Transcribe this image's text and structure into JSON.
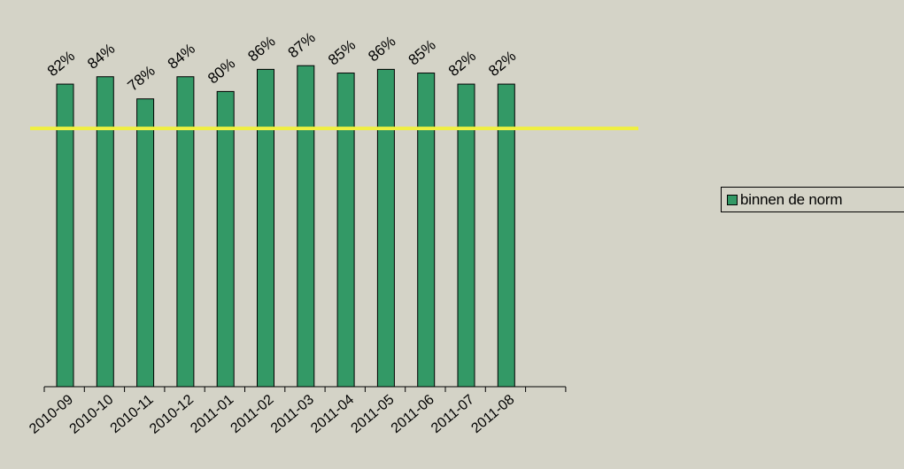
{
  "chart_data": {
    "type": "bar",
    "categories": [
      "2010-09",
      "2010-10",
      "2010-11",
      "2010-12",
      "2011-01",
      "2011-02",
      "2011-03",
      "2011-04",
      "2011-05",
      "2011-06",
      "2011-07",
      "2011-08"
    ],
    "series": [
      {
        "name": "binnen de norm",
        "values": [
          82,
          84,
          78,
          84,
          80,
          86,
          87,
          85,
          86,
          85,
          82,
          82
        ],
        "labels": [
          "82%",
          "84%",
          "78%",
          "84%",
          "80%",
          "86%",
          "87%",
          "85%",
          "86%",
          "85%",
          "82%",
          "82%"
        ],
        "color": "#339966"
      }
    ],
    "reference_line": {
      "value": 70,
      "color": "#f0f040"
    },
    "ylim": [
      0,
      100
    ],
    "grid": false,
    "legend_position": "right"
  }
}
